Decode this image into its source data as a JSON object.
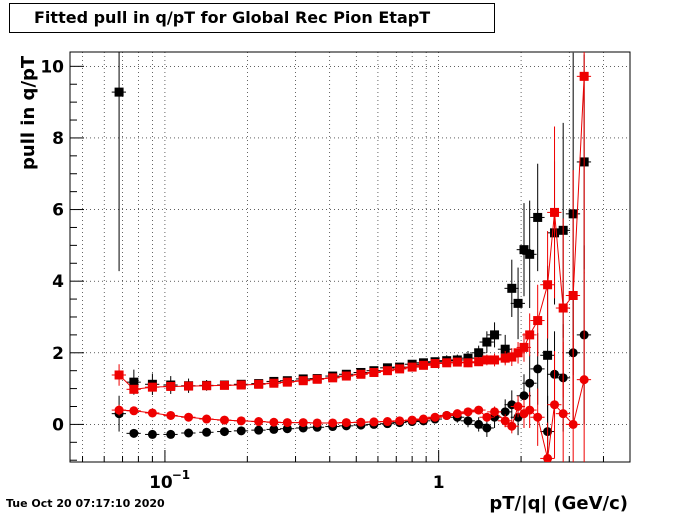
{
  "chart_data": {
    "type": "scatter",
    "title": "Fitted pull in q/pT for Global Rec Pion EtapT",
    "xlabel": "pT/|q| (GeV/c)",
    "ylabel": "pull in q/pT",
    "xscale": "log",
    "xlim": [
      0.045,
      5.0
    ],
    "ylim": [
      -1.05,
      10.4
    ],
    "grid": true,
    "x_tick_labels": [
      {
        "value": 0.1,
        "label": "10^-1"
      },
      {
        "value": 1,
        "label": "1"
      }
    ],
    "y_ticks": [
      0,
      2,
      4,
      6,
      8,
      10
    ],
    "series": [
      {
        "color": "#000000",
        "marker": "square",
        "x": [
          0.068,
          0.077,
          0.09,
          0.105,
          0.122,
          0.142,
          0.165,
          0.19,
          0.22,
          0.25,
          0.28,
          0.32,
          0.36,
          0.41,
          0.46,
          0.52,
          0.58,
          0.65,
          0.72,
          0.8,
          0.88,
          0.97,
          1.07,
          1.17,
          1.28,
          1.4,
          1.5,
          1.6,
          1.75,
          1.85,
          1.95,
          2.05,
          2.15,
          2.3,
          2.5,
          2.65,
          2.85,
          3.1,
          3.4
        ],
        "y": [
          9.28,
          1.18,
          1.12,
          1.1,
          1.08,
          1.09,
          1.1,
          1.12,
          1.14,
          1.2,
          1.22,
          1.27,
          1.28,
          1.35,
          1.4,
          1.45,
          1.5,
          1.58,
          1.6,
          1.68,
          1.72,
          1.75,
          1.78,
          1.8,
          1.85,
          2.0,
          2.3,
          2.5,
          2.1,
          3.8,
          3.38,
          4.88,
          4.75,
          5.78,
          1.93,
          5.35,
          5.42,
          5.88,
          7.33
        ],
        "err_y": [
          5.0,
          0.35,
          0.3,
          0.25,
          0.2,
          0.15,
          0.1,
          0.1,
          0.1,
          0.1,
          0.1,
          0.1,
          0.1,
          0.1,
          0.1,
          0.1,
          0.1,
          0.1,
          0.1,
          0.1,
          0.12,
          0.12,
          0.15,
          0.15,
          0.2,
          0.2,
          0.3,
          0.35,
          0.4,
          0.8,
          1.0,
          1.3,
          1.5,
          1.5,
          2.5,
          2.0,
          3.0,
          4.5,
          3.0
        ]
      },
      {
        "color": "#000000",
        "marker": "circle",
        "x": [
          0.068,
          0.077,
          0.09,
          0.105,
          0.122,
          0.142,
          0.165,
          0.19,
          0.22,
          0.25,
          0.28,
          0.32,
          0.36,
          0.41,
          0.46,
          0.52,
          0.58,
          0.65,
          0.72,
          0.8,
          0.88,
          0.97,
          1.07,
          1.17,
          1.28,
          1.4,
          1.5,
          1.6,
          1.75,
          1.85,
          1.95,
          2.05,
          2.15,
          2.3,
          2.5,
          2.65,
          2.85,
          3.1,
          3.4
        ],
        "y": [
          0.3,
          -0.25,
          -0.28,
          -0.28,
          -0.24,
          -0.22,
          -0.2,
          -0.18,
          -0.16,
          -0.14,
          -0.12,
          -0.1,
          -0.08,
          -0.06,
          -0.04,
          -0.02,
          0.0,
          0.02,
          0.05,
          0.08,
          0.1,
          0.15,
          0.25,
          0.2,
          0.1,
          0.0,
          -0.1,
          0.2,
          0.35,
          0.55,
          0.2,
          0.8,
          1.15,
          1.55,
          -0.2,
          1.4,
          1.3,
          2.0,
          2.5
        ],
        "err_y": [
          0.5,
          0.12,
          0.1,
          0.08,
          0.06,
          0.05,
          0.04,
          0.04,
          0.04,
          0.04,
          0.04,
          0.04,
          0.04,
          0.04,
          0.05,
          0.05,
          0.05,
          0.06,
          0.06,
          0.07,
          0.08,
          0.1,
          0.12,
          0.15,
          0.18,
          0.2,
          0.25,
          0.3,
          0.35,
          0.4,
          0.5,
          0.6,
          0.8,
          1.0,
          1.0,
          1.2,
          1.5,
          2.0,
          2.5
        ]
      },
      {
        "color": "#ee0000",
        "marker": "square",
        "x": [
          0.068,
          0.077,
          0.09,
          0.105,
          0.122,
          0.142,
          0.165,
          0.19,
          0.22,
          0.25,
          0.28,
          0.32,
          0.36,
          0.41,
          0.46,
          0.52,
          0.58,
          0.65,
          0.72,
          0.8,
          0.88,
          0.97,
          1.07,
          1.17,
          1.28,
          1.4,
          1.5,
          1.6,
          1.75,
          1.85,
          1.95,
          2.05,
          2.15,
          2.3,
          2.5,
          2.65,
          2.85,
          3.1,
          3.4
        ],
        "y": [
          1.38,
          0.98,
          1.04,
          1.06,
          1.07,
          1.08,
          1.09,
          1.1,
          1.12,
          1.15,
          1.18,
          1.22,
          1.26,
          1.3,
          1.35,
          1.4,
          1.45,
          1.5,
          1.55,
          1.6,
          1.65,
          1.7,
          1.72,
          1.74,
          1.72,
          1.75,
          1.8,
          1.8,
          1.85,
          1.88,
          2.0,
          2.15,
          2.5,
          2.9,
          3.9,
          5.92,
          3.25,
          3.6,
          9.72
        ],
        "err_y": [
          0.3,
          0.1,
          0.08,
          0.06,
          0.05,
          0.04,
          0.04,
          0.04,
          0.04,
          0.04,
          0.04,
          0.04,
          0.04,
          0.05,
          0.05,
          0.05,
          0.05,
          0.06,
          0.06,
          0.07,
          0.08,
          0.09,
          0.1,
          0.1,
          0.12,
          0.12,
          0.15,
          0.18,
          0.2,
          0.25,
          0.3,
          0.4,
          0.6,
          1.0,
          1.5,
          2.4,
          2.5,
          3.5,
          5.5
        ]
      },
      {
        "color": "#ee0000",
        "marker": "circle",
        "x": [
          0.068,
          0.077,
          0.09,
          0.105,
          0.122,
          0.142,
          0.165,
          0.19,
          0.22,
          0.25,
          0.28,
          0.32,
          0.36,
          0.41,
          0.46,
          0.52,
          0.58,
          0.65,
          0.72,
          0.8,
          0.88,
          0.97,
          1.07,
          1.17,
          1.28,
          1.4,
          1.5,
          1.6,
          1.75,
          1.85,
          1.95,
          2.05,
          2.15,
          2.3,
          2.5,
          2.65,
          2.85,
          3.1,
          3.4
        ],
        "y": [
          0.4,
          0.38,
          0.32,
          0.25,
          0.2,
          0.15,
          0.12,
          0.1,
          0.08,
          0.06,
          0.05,
          0.05,
          0.04,
          0.04,
          0.05,
          0.06,
          0.07,
          0.08,
          0.1,
          0.12,
          0.15,
          0.2,
          0.25,
          0.3,
          0.35,
          0.4,
          0.2,
          0.35,
          0.1,
          -0.05,
          0.5,
          0.3,
          0.4,
          0.2,
          -0.95,
          0.55,
          0.3,
          0.0,
          1.25
        ],
        "err_y": [
          0.15,
          0.08,
          0.06,
          0.05,
          0.04,
          0.03,
          0.03,
          0.03,
          0.03,
          0.03,
          0.03,
          0.03,
          0.03,
          0.03,
          0.03,
          0.03,
          0.04,
          0.04,
          0.04,
          0.05,
          0.05,
          0.06,
          0.07,
          0.08,
          0.1,
          0.1,
          0.12,
          0.15,
          0.18,
          0.2,
          0.3,
          0.4,
          0.5,
          0.8,
          1.0,
          1.5,
          2.0,
          2.5,
          3.0
        ]
      }
    ]
  },
  "footer": {
    "timestamp": "Tue Oct 20 07:17:10 2020"
  }
}
